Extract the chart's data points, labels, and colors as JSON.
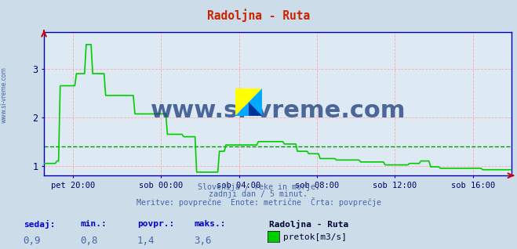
{
  "title": "Radoljna - Ruta",
  "title_color": "#cc2200",
  "bg_color": "#ccdce8",
  "plot_bg_color": "#ddeaf4",
  "grid_color": "#ffaaaa",
  "avg_line_value": 1.4,
  "avg_line_color": "#009900",
  "line_color": "#00cc00",
  "axis_color": "#0000bb",
  "tick_label_color": "#000066",
  "ylim": [
    0.8,
    3.75
  ],
  "yticks": [
    1,
    2,
    3
  ],
  "xtick_labels": [
    "pet 20:00",
    "sob 00:00",
    "sob 04:00",
    "sob 08:00",
    "sob 12:00",
    "sob 16:00"
  ],
  "footer_lines": [
    "Slovenija / reke in morje.",
    "zadnji dan / 5 minut.",
    "Meritve: povprečne  Enote: metrične  Črta: povprečje"
  ],
  "footer_color": "#4466aa",
  "bottom_labels": [
    "sedaj:",
    "min.:",
    "povpr.:",
    "maks.:"
  ],
  "bottom_values": [
    "0,9",
    "0,8",
    "1,4",
    "3,6"
  ],
  "bottom_station": "Radoljna - Ruta",
  "bottom_legend": "pretok[m3/s]",
  "bottom_legend_color": "#00cc00",
  "sidebar_text": "www.si-vreme.com",
  "sidebar_color": "#4466aa",
  "watermark_text": "www.si-vreme.com",
  "watermark_color": "#1a3a7a",
  "label_color_blue": "#0000cc",
  "value_color": "#4466aa"
}
